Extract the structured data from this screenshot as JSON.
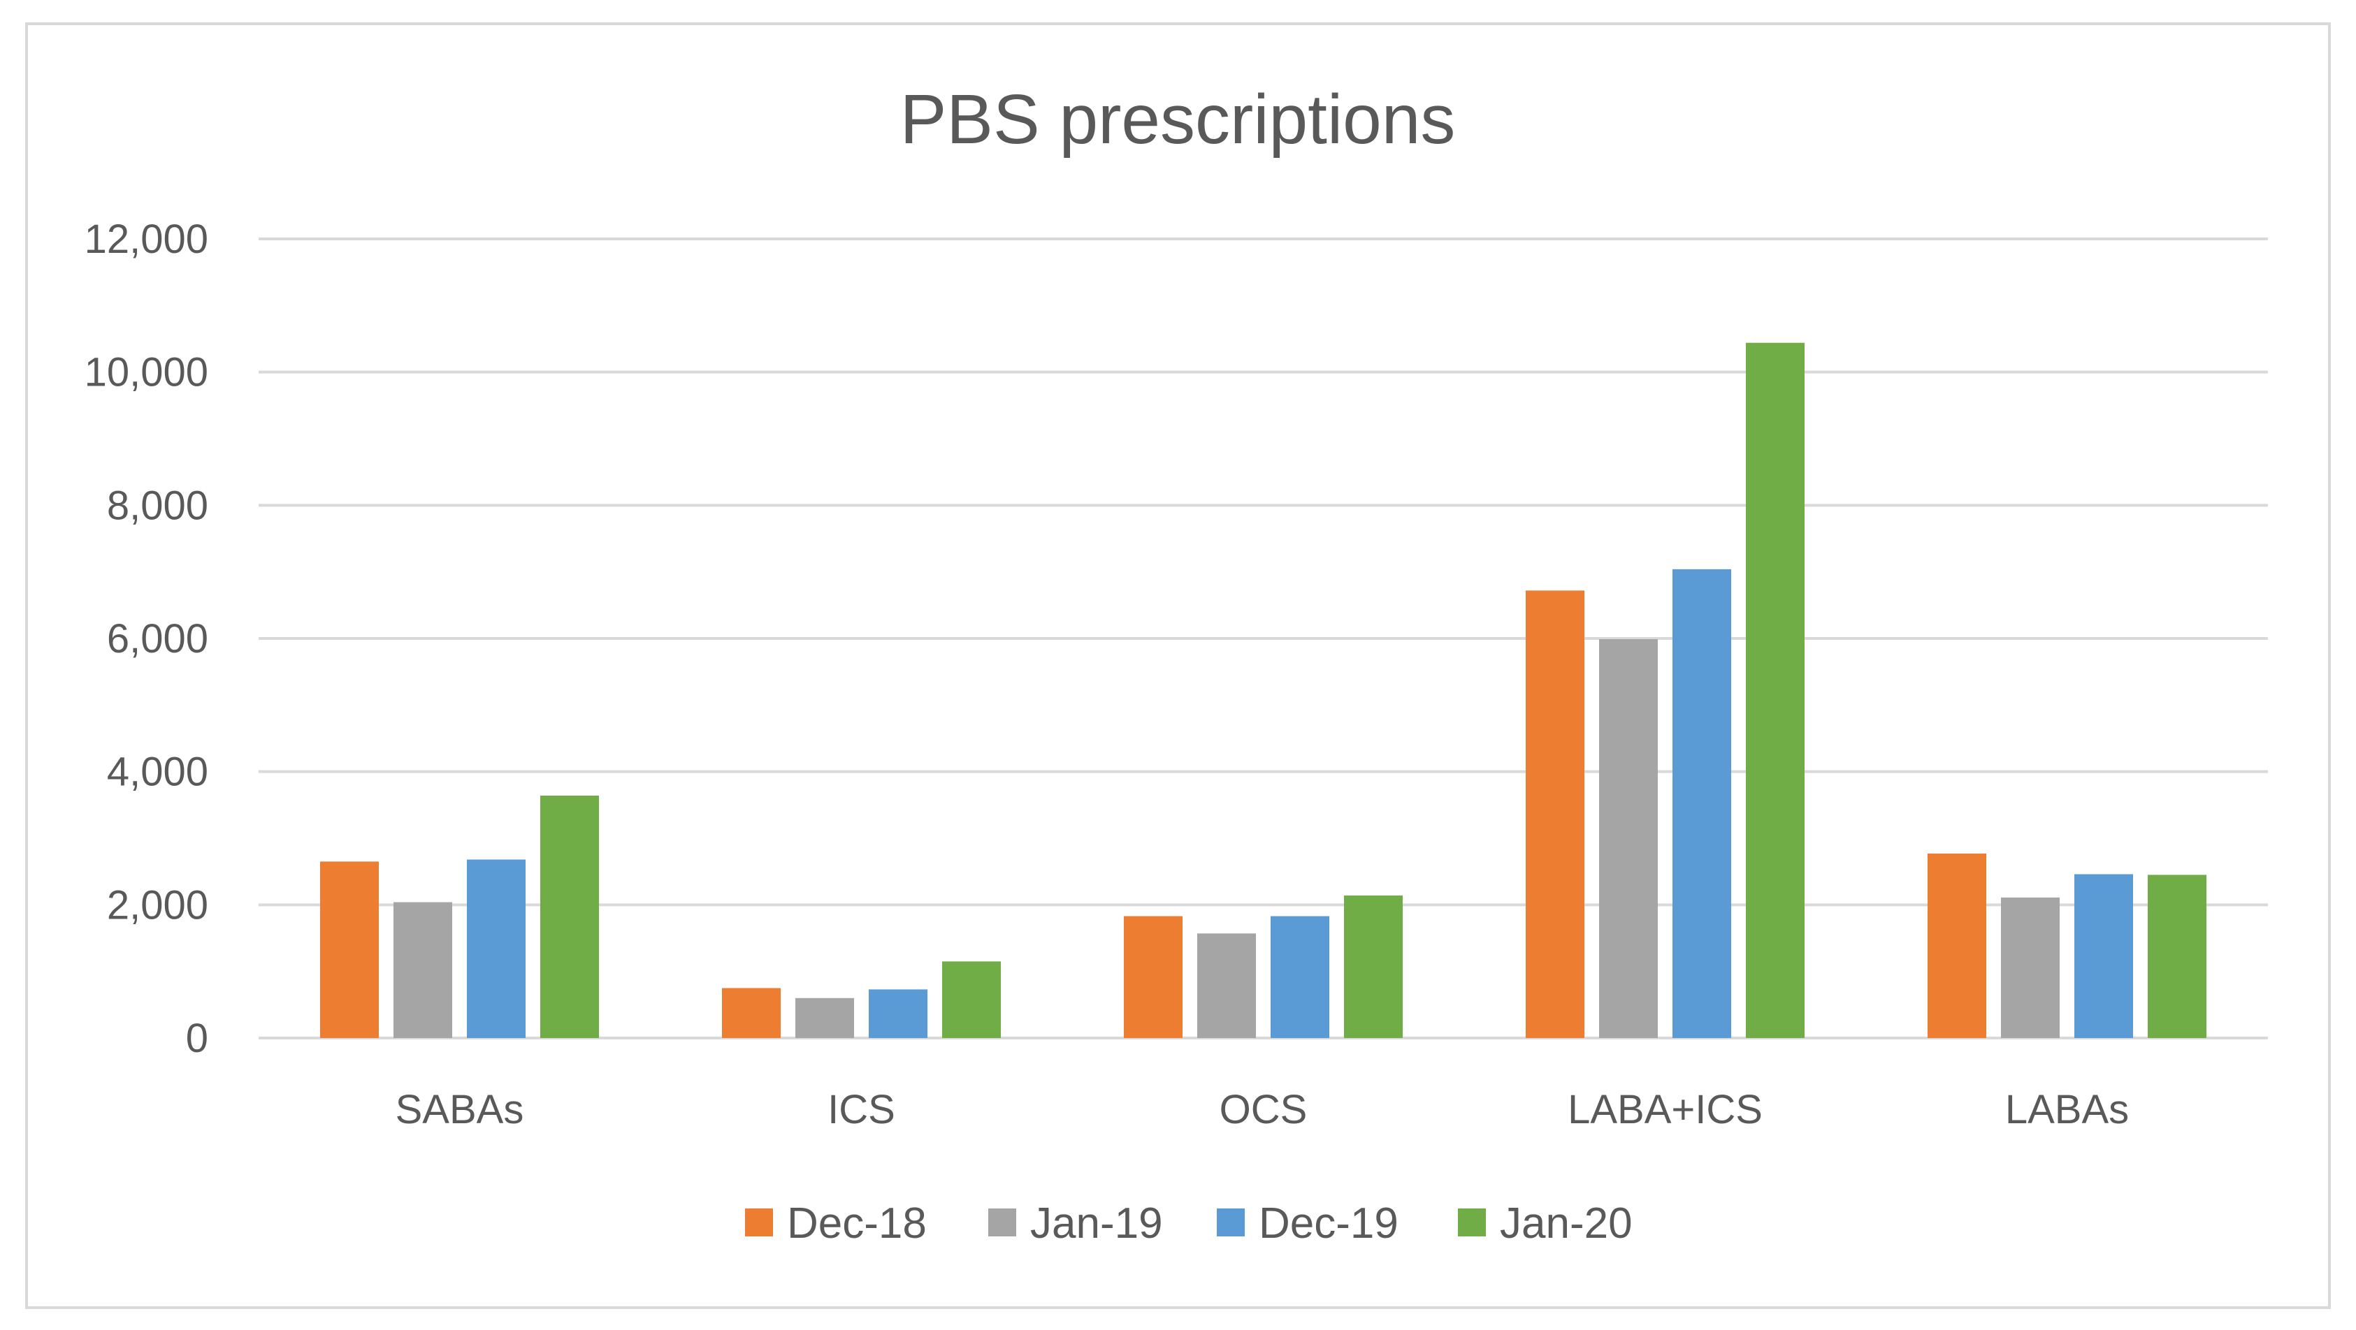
{
  "chart_data": {
    "type": "bar",
    "title": "PBS prescriptions",
    "xlabel": "",
    "ylabel": "",
    "ylim": [
      0,
      12000
    ],
    "yticks": [
      0,
      2000,
      4000,
      6000,
      8000,
      10000,
      12000
    ],
    "ytick_labels": [
      "0",
      "2,000",
      "4,000",
      "6,000",
      "8,000",
      "10,000",
      "12,000"
    ],
    "categories": [
      "SABAs",
      "ICS",
      "OCS",
      "LABA+ICS",
      "LABAs"
    ],
    "series": [
      {
        "name": "Dec-18",
        "color": "#ed7d31",
        "values": [
          2650,
          750,
          1830,
          6720,
          2770
        ]
      },
      {
        "name": "Jan-19",
        "color": "#a5a5a5",
        "values": [
          2040,
          600,
          1570,
          5990,
          2110
        ]
      },
      {
        "name": "Dec-19",
        "color": "#5b9bd5",
        "values": [
          2680,
          730,
          1830,
          7040,
          2460
        ]
      },
      {
        "name": "Jan-20",
        "color": "#70ad47",
        "values": [
          3640,
          1150,
          2140,
          10440,
          2450
        ]
      }
    ],
    "grid": true,
    "legend": "bottom"
  }
}
